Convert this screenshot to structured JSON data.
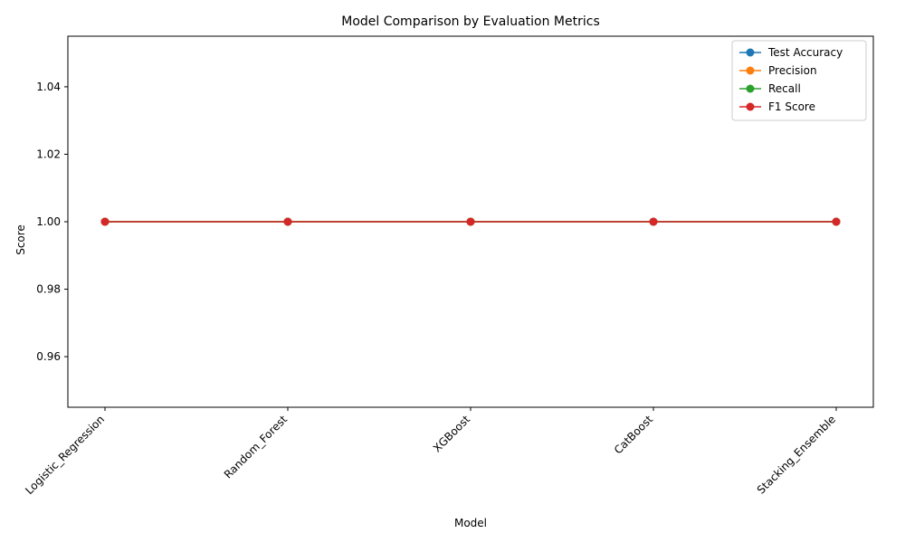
{
  "chart_data": {
    "type": "line",
    "title": "Model Comparison by Evaluation Metrics",
    "xlabel": "Model",
    "ylabel": "Score",
    "categories": [
      "Logistic_Regression",
      "Random_Forest",
      "XGBoost",
      "CatBoost",
      "Stacking_Ensemble"
    ],
    "ylim": [
      0.945,
      1.055
    ],
    "yticks": [
      "0.96",
      "0.98",
      "1.00",
      "1.02",
      "1.04"
    ],
    "x_tick_rotation_deg": 45,
    "grid": false,
    "legend_position": "top-right",
    "series": [
      {
        "name": "Test Accuracy",
        "color": "#1f77b4",
        "values": [
          1.0,
          1.0,
          1.0,
          1.0,
          1.0
        ]
      },
      {
        "name": "Precision",
        "color": "#ff7f0e",
        "values": [
          1.0,
          1.0,
          1.0,
          1.0,
          1.0
        ]
      },
      {
        "name": "Recall",
        "color": "#2ca02c",
        "values": [
          1.0,
          1.0,
          1.0,
          1.0,
          1.0
        ]
      },
      {
        "name": "F1 Score",
        "color": "#d62728",
        "values": [
          1.0,
          1.0,
          1.0,
          1.0,
          1.0
        ]
      }
    ]
  }
}
